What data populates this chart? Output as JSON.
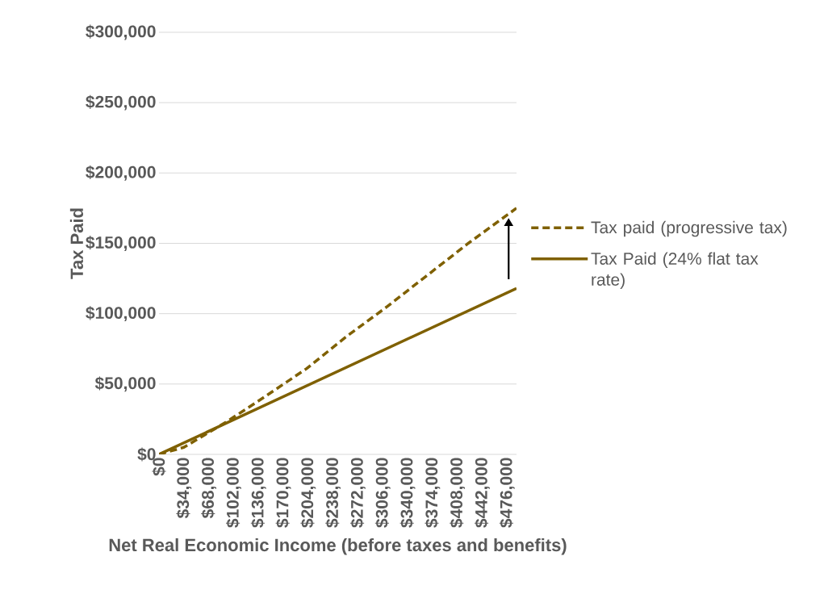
{
  "chart_data": {
    "type": "line",
    "xlabel": "Net Real Economic Income (before taxes and benefits)",
    "ylabel": "Tax Paid",
    "xlim": [
      0,
      489000
    ],
    "ylim": [
      0,
      300000
    ],
    "xticks": [
      {
        "value": 0,
        "label": "$0"
      },
      {
        "value": 34000,
        "label": "$34,000"
      },
      {
        "value": 68000,
        "label": "$68,000"
      },
      {
        "value": 102000,
        "label": "$102,000"
      },
      {
        "value": 136000,
        "label": "$136,000"
      },
      {
        "value": 170000,
        "label": "$170,000"
      },
      {
        "value": 204000,
        "label": "$204,000"
      },
      {
        "value": 238000,
        "label": "$238,000"
      },
      {
        "value": 272000,
        "label": "$272,000"
      },
      {
        "value": 306000,
        "label": "$306,000"
      },
      {
        "value": 340000,
        "label": "$340,000"
      },
      {
        "value": 374000,
        "label": "$374,000"
      },
      {
        "value": 408000,
        "label": "$408,000"
      },
      {
        "value": 442000,
        "label": "$442,000"
      },
      {
        "value": 476000,
        "label": "$476,000"
      }
    ],
    "yticks": [
      {
        "value": 0,
        "label": "$0"
      },
      {
        "value": 50000,
        "label": "$50,000"
      },
      {
        "value": 100000,
        "label": "$100,000"
      },
      {
        "value": 150000,
        "label": "$150,000"
      },
      {
        "value": 200000,
        "label": "$200,000"
      },
      {
        "value": 250000,
        "label": "$250,000"
      },
      {
        "value": 300000,
        "label": "$300,000"
      }
    ],
    "series": [
      {
        "name": "Tax paid (progressive tax)",
        "color": "#7f6000",
        "line_style": "dashed",
        "x": [
          0,
          34000,
          92000,
          139000,
          202000,
          257000,
          312000,
          423000,
          489000
        ],
        "values": [
          0,
          5000,
          23000,
          39000,
          61000,
          84000,
          105000,
          150000,
          175000
        ]
      },
      {
        "name": "Tax Paid (24% flat tax rate)",
        "color": "#7f6000",
        "line_style": "solid",
        "x": [
          0,
          489000
        ],
        "values": [
          0,
          118000
        ]
      }
    ],
    "grid": "y",
    "legend": "right"
  }
}
